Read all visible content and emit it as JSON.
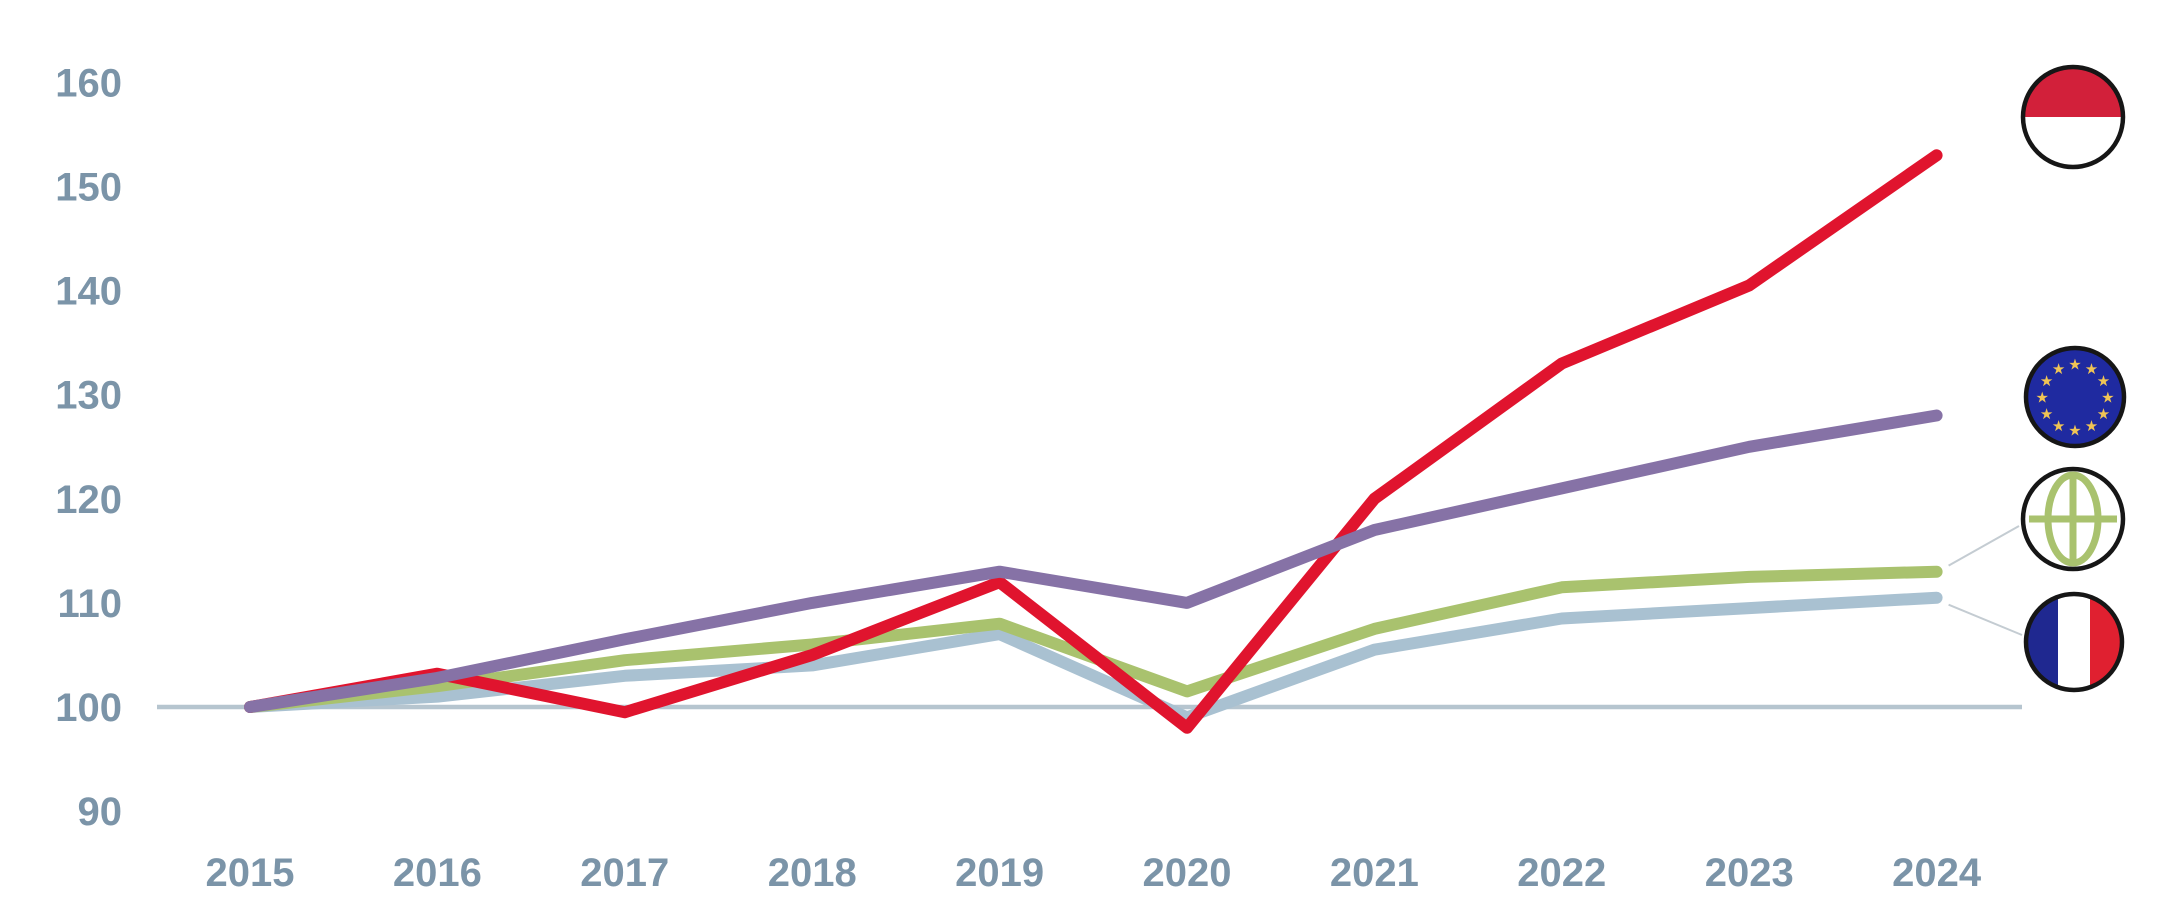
{
  "page": {
    "background": "#ffffff"
  },
  "axis": {
    "text_color": "#7b94a8",
    "baseline_color": "#b6c5cf",
    "callout_color": "#c4ccd2"
  },
  "icons": {
    "ring": "#161616",
    "monaco_flag": {
      "red": "#d2203a",
      "white": "#ffffff"
    },
    "eu_flag": {
      "blue": "#1f2aa0",
      "star_gold": "#f0c455"
    },
    "globe": {
      "green": "#a9c26e",
      "white": "#ffffff"
    },
    "france_flag": {
      "blue": "#1f2890",
      "white": "#ffffff",
      "red": "#e02030"
    }
  },
  "chart_data": {
    "type": "line",
    "title": "",
    "xlabel": "",
    "ylabel": "",
    "x": [
      "2015",
      "2016",
      "2017",
      "2018",
      "2019",
      "2020",
      "2021",
      "2022",
      "2023",
      "2024"
    ],
    "yticks": [
      90,
      100,
      110,
      120,
      130,
      140,
      150,
      160
    ],
    "ylim": [
      85,
      165
    ],
    "grid": false,
    "baseline_value": 100,
    "legend_position": "right",
    "series": [
      {
        "name": "Monaco",
        "icon": "monaco-flag-icon",
        "color": "#e0142e",
        "values": [
          100,
          103.2,
          99.5,
          105,
          112,
          98,
          120,
          133,
          140.5,
          153
        ]
      },
      {
        "name": "European Union",
        "icon": "eu-flag-icon",
        "color": "#8672a6",
        "values": [
          100,
          102.8,
          106.5,
          110,
          113,
          110,
          117,
          121,
          125,
          128
        ]
      },
      {
        "name": "World",
        "icon": "globe-icon",
        "color": "#a9c26e",
        "values": [
          100,
          102,
          104.5,
          106,
          108,
          101.5,
          107.5,
          111.5,
          112.5,
          113
        ]
      },
      {
        "name": "France",
        "icon": "france-flag-icon",
        "color": "#a9c1d1",
        "values": [
          100,
          101,
          103,
          104,
          107,
          99,
          105.5,
          108.5,
          109.5,
          110.5
        ]
      }
    ],
    "callouts": [
      {
        "from_series": "World",
        "to_icon": "globe-icon"
      },
      {
        "from_series": "France",
        "to_icon": "france-flag-icon"
      }
    ]
  }
}
